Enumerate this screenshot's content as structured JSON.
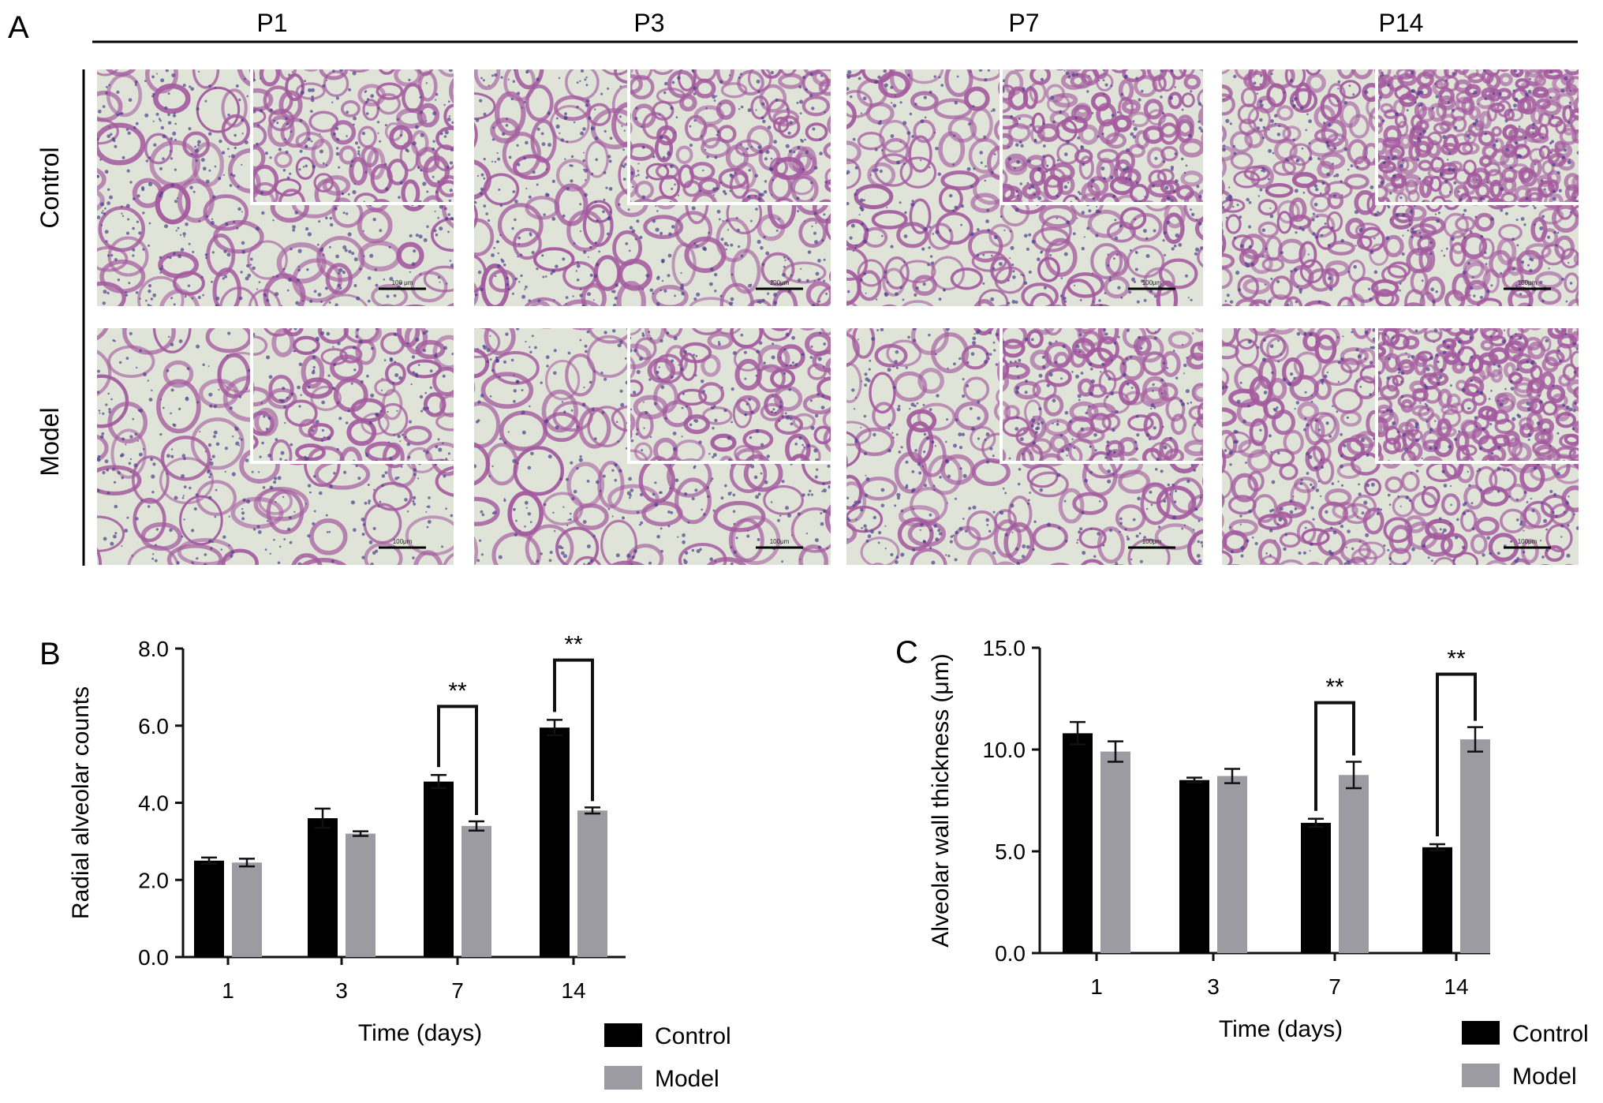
{
  "panel_a": {
    "letter": "A",
    "columns": [
      "P1",
      "P3",
      "P7",
      "P14"
    ],
    "rows": [
      "Control",
      "Model"
    ],
    "scale_labels": [
      [
        "100 μm",
        "100μm",
        "100μm",
        "100μm"
      ],
      [
        "100μm",
        "100μm",
        "100μm",
        "100μm"
      ]
    ],
    "colors": {
      "background": "#dfe3d8",
      "tissue": "#a35a9e",
      "nuclei": "#4f3f8c",
      "inset_border": "#ffffff"
    }
  },
  "chart_data": [
    {
      "panel_letter": "B",
      "type": "bar",
      "categories": [
        "1",
        "3",
        "7",
        "14"
      ],
      "series": [
        {
          "name": "Control",
          "values": [
            2.5,
            3.6,
            4.55,
            5.95
          ],
          "errors": [
            0.08,
            0.25,
            0.17,
            0.2
          ],
          "color": "#000000"
        },
        {
          "name": "Model",
          "values": [
            2.45,
            3.2,
            3.4,
            3.8
          ],
          "errors": [
            0.1,
            0.06,
            0.12,
            0.08
          ],
          "color": "#9b9ba1"
        }
      ],
      "xlabel": "Time (days)",
      "ylabel": "Radial alveolar counts",
      "ylim": [
        0,
        8
      ],
      "yticks": [
        "0.0",
        "2.0",
        "4.0",
        "6.0",
        "8.0"
      ],
      "significance": [
        {
          "category_index": 2,
          "label": "**",
          "bracket_top": 6.5
        },
        {
          "category_index": 3,
          "label": "**",
          "bracket_top": 7.7
        }
      ],
      "legend": [
        "Control",
        "Model"
      ],
      "legend_position": "bottom-right",
      "grid": false
    },
    {
      "panel_letter": "C",
      "type": "bar",
      "categories": [
        "1",
        "3",
        "7",
        "14"
      ],
      "series": [
        {
          "name": "Control",
          "values": [
            10.8,
            8.5,
            6.4,
            5.2
          ],
          "errors": [
            0.55,
            0.12,
            0.2,
            0.15
          ],
          "color": "#000000"
        },
        {
          "name": "Model",
          "values": [
            9.9,
            8.7,
            8.75,
            10.5
          ],
          "errors": [
            0.5,
            0.35,
            0.65,
            0.6
          ],
          "color": "#9b9ba1"
        }
      ],
      "xlabel": "Time (days)",
      "ylabel": "Alveolar wall thickness (μm)",
      "ylim": [
        0,
        15
      ],
      "yticks": [
        "0.0",
        "5.0",
        "10.0",
        "15.0"
      ],
      "significance": [
        {
          "category_index": 2,
          "label": "**",
          "bracket_top": 12.3
        },
        {
          "category_index": 3,
          "label": "**",
          "bracket_top": 13.7
        }
      ],
      "legend": [
        "Control",
        "Model"
      ],
      "legend_position": "bottom-right",
      "grid": false
    }
  ]
}
